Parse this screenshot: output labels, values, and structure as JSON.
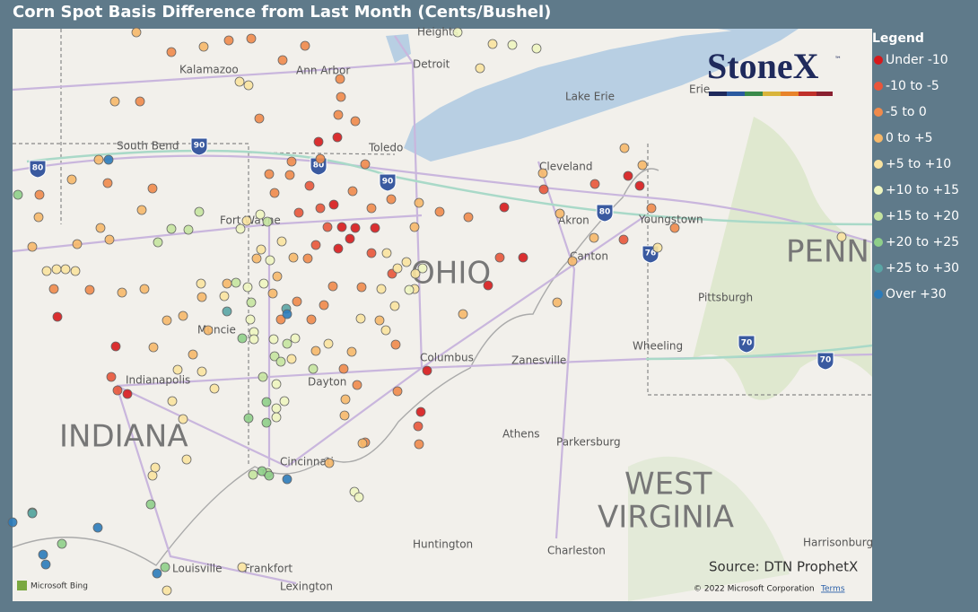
{
  "header": {
    "title": "Corn Spot Basis Difference from Last Month (Cents/Bushel)"
  },
  "legend": {
    "title": "Legend",
    "items": [
      {
        "label": "Under -10",
        "color": "#d7191c"
      },
      {
        "label": "-10 to -5",
        "color": "#e8553a"
      },
      {
        "label": "-5 to 0",
        "color": "#f08a4b"
      },
      {
        "label": "0 to +5",
        "color": "#f6b86a"
      },
      {
        "label": "+5 to +10",
        "color": "#f9e3a0"
      },
      {
        "label": "+10 to +15",
        "color": "#eef5c0"
      },
      {
        "label": "+15 to +20",
        "color": "#c5e4a0"
      },
      {
        "label": "+20 to +25",
        "color": "#8fcf8a"
      },
      {
        "label": "+25 to +30",
        "color": "#5aa5a5"
      },
      {
        "label": "Over +30",
        "color": "#2b7bba"
      }
    ]
  },
  "map": {
    "places": [
      "Heights",
      "Kalamazoo",
      "Ann Arbor",
      "Detroit",
      "Lake Erie",
      "Erie",
      "South Bend",
      "Toledo",
      "Cleveland",
      "Akron",
      "Youngstown",
      "Fort Wayne",
      "Canton",
      "Pittsburgh",
      "Muncie",
      "Columbus",
      "Zanesville",
      "Wheeling",
      "Indianapolis",
      "Dayton",
      "Athens",
      "Parkersburg",
      "Cincinnati",
      "Huntington",
      "Charleston",
      "Harrisonburg",
      "Louisville",
      "Frankfort",
      "Lexington"
    ],
    "regions": [
      "OHIO",
      "PENN",
      "INDIANA",
      "WEST",
      "VIRGINIA"
    ],
    "shields": [
      "80",
      "90",
      "90",
      "80",
      "76",
      "70",
      "70",
      "80"
    ]
  },
  "logo": {
    "name": "StoneX",
    "mark": "™"
  },
  "footer": {
    "source": "Source: DTN ProphetX",
    "bing": "Microsoft Bing",
    "copyright": "© 2022 Microsoft Corporation",
    "terms": "Terms"
  }
}
